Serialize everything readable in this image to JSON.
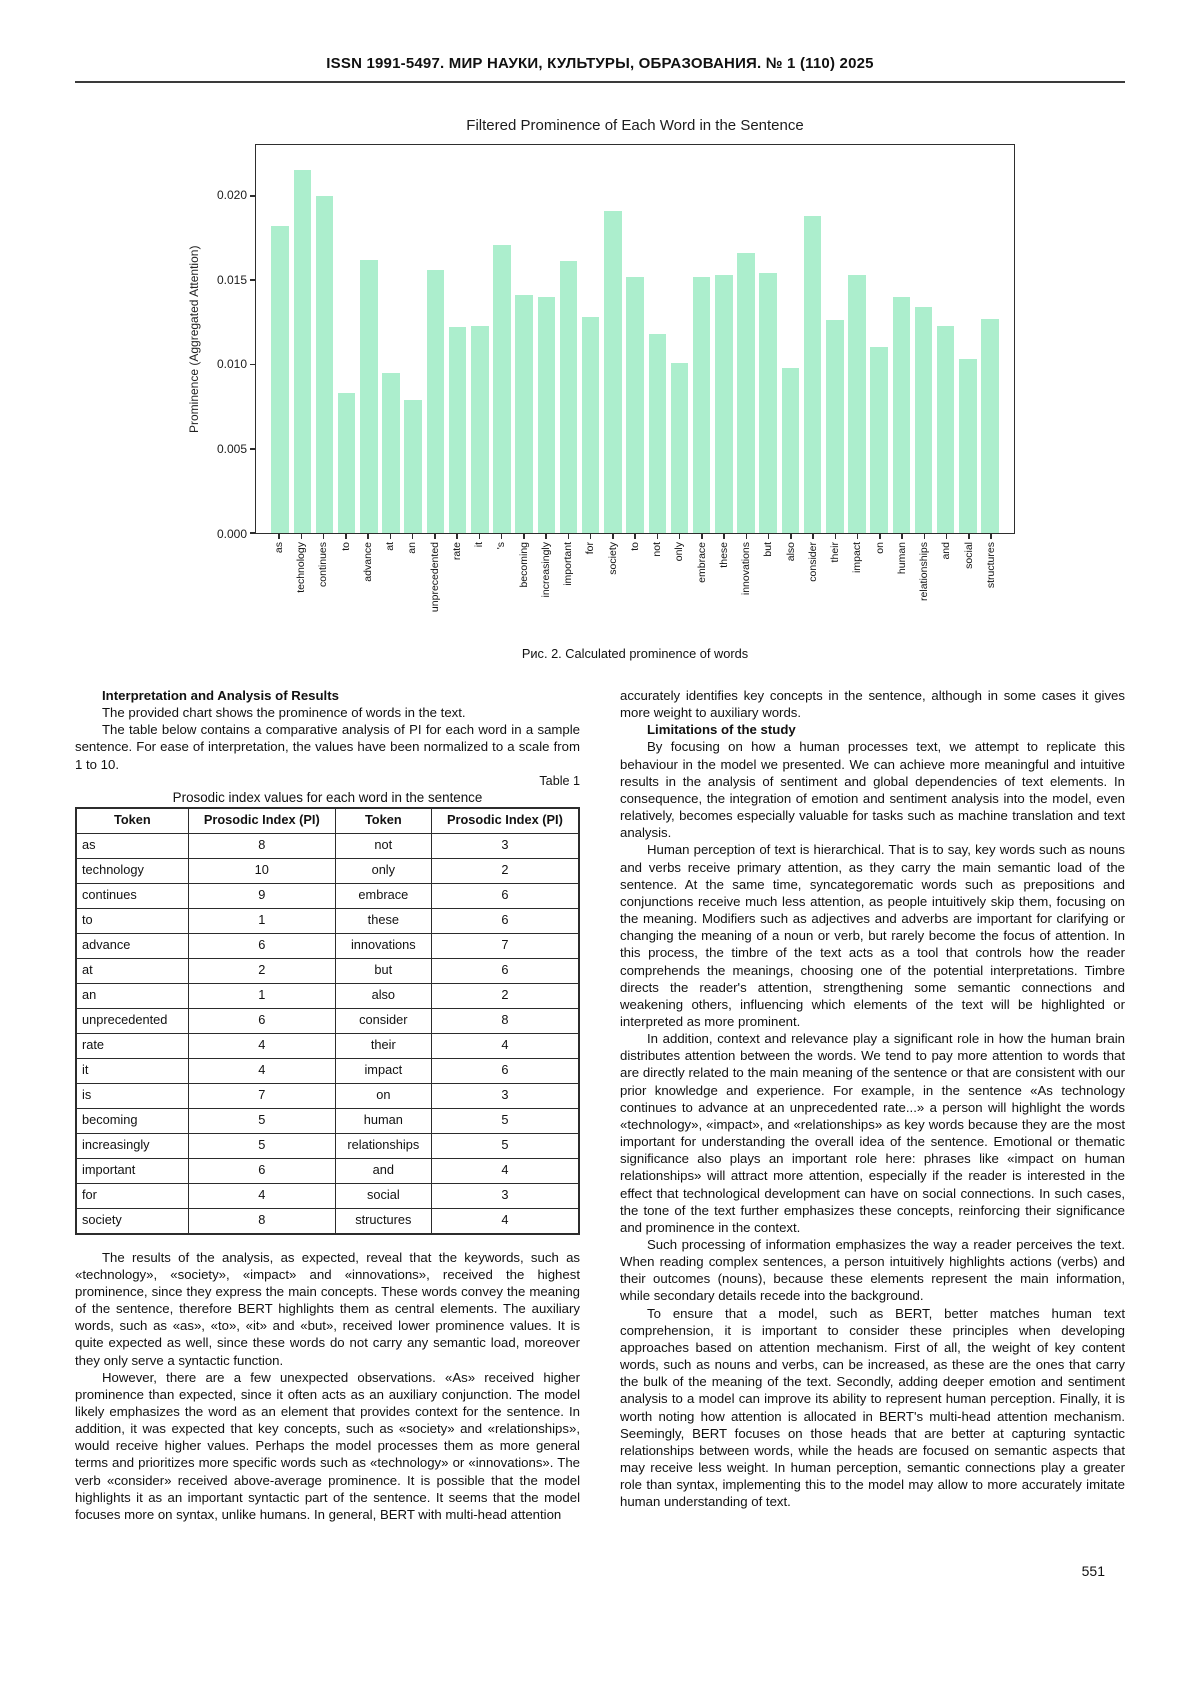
{
  "page": {
    "header": "ISSN 1991-5497. МИР НАУКИ, КУЛЬТУРЫ, ОБРАЗОВАНИЯ. № 1 (110) 2025",
    "page_number": "551"
  },
  "figure": {
    "caption": "Рис. 2. Calculated prominence of words"
  },
  "chart_data": {
    "type": "bar",
    "title": "Filtered Prominence of Each Word in the Sentence",
    "xlabel": "",
    "ylabel": "Prominence (Aggregated Attention)",
    "ylim": [
      0,
      0.023
    ],
    "yticks": [
      0.0,
      0.005,
      0.01,
      0.015,
      0.02
    ],
    "bar_color": "#aceecd",
    "grid": false,
    "legend": "none",
    "categories": [
      "as",
      "technology",
      "continues",
      "to",
      "advance",
      "at",
      "an",
      "unprecedented",
      "rate",
      "it",
      "'s",
      "becoming",
      "increasingly",
      "important",
      "for",
      "society",
      "to",
      "not",
      "only",
      "embrace",
      "these",
      "innovations",
      "but",
      "also",
      "consider",
      "their",
      "impact",
      "on",
      "human",
      "relationships",
      "and",
      "social",
      "structures"
    ],
    "values": [
      0.0182,
      0.0215,
      0.02,
      0.0083,
      0.0162,
      0.0095,
      0.0079,
      0.0156,
      0.0122,
      0.0123,
      0.0171,
      0.0141,
      0.014,
      0.0161,
      0.0128,
      0.0191,
      0.0152,
      0.0118,
      0.0101,
      0.0152,
      0.0153,
      0.0166,
      0.0154,
      0.0098,
      0.0188,
      0.0126,
      0.0153,
      0.011,
      0.014,
      0.0134,
      0.0123,
      0.0103,
      0.0127
    ]
  },
  "left_column": {
    "heading1": "Interpretation and Analysis of Results",
    "para1": "The provided chart shows the prominence of words in the text.",
    "para2": "The table below contains a comparative analysis of PI for each word in a sample sentence. For ease of interpretation, the values have been normalized to a scale from 1 to 10.",
    "table_label": "Table 1",
    "table_title": "Prosodic index values for each word in the sentence",
    "table": {
      "headers": [
        "Token",
        "Prosodic Index (PI)",
        "Token",
        "Prosodic Index (PI)"
      ],
      "rows": [
        [
          "as",
          "8",
          "not",
          "3"
        ],
        [
          "technology",
          "10",
          "only",
          "2"
        ],
        [
          "continues",
          "9",
          "embrace",
          "6"
        ],
        [
          "to",
          "1",
          "these",
          "6"
        ],
        [
          "advance",
          "6",
          "innovations",
          "7"
        ],
        [
          "at",
          "2",
          "but",
          "6"
        ],
        [
          "an",
          "1",
          "also",
          "2"
        ],
        [
          "unprecedented",
          "6",
          "consider",
          "8"
        ],
        [
          "rate",
          "4",
          "their",
          "4"
        ],
        [
          "it",
          "4",
          "impact",
          "6"
        ],
        [
          "is",
          "7",
          "on",
          "3"
        ],
        [
          "becoming",
          "5",
          "human",
          "5"
        ],
        [
          "increasingly",
          "5",
          "relationships",
          "5"
        ],
        [
          "important",
          "6",
          "and",
          "4"
        ],
        [
          "for",
          "4",
          "social",
          "3"
        ],
        [
          "society",
          "8",
          "structures",
          "4"
        ]
      ]
    },
    "para3": "The results of the analysis, as expected, reveal that the keywords, such as «technology», «society», «impact» and «innovations», received the highest prominence, since they express the main concepts. These words convey the meaning of the sentence, therefore BERT highlights them as central elements. The auxiliary words, such as «as», «to», «it» and «but», received lower prominence values. It is quite expected as well, since these words do not carry any semantic load, moreover they only serve a syntactic function.",
    "para4": "However, there are a few unexpected observations. «As» received higher prominence than expected, since it often acts as an auxiliary conjunction. The model likely emphasizes the word as an element that provides context for the sentence. In addition, it was expected that key concepts, such as «society» and «relationships», would receive higher values. Perhaps the model processes them as more general terms and prioritizes more specific words such as «technology» or «innovations». The verb «consider» received above-average prominence. It is possible that the model highlights it as an important syntactic part of the sentence. It seems that the model focuses more on syntax, unlike humans. In general, BERT with multi-head attention"
  },
  "right_column": {
    "para0": "accurately identifies key concepts in the sentence, although in some cases it gives more weight to auxiliary words.",
    "heading1": "Limitations of the study",
    "para1": "By focusing on how a human processes text, we attempt to replicate this behaviour in the model we presented. We can achieve more meaningful and intuitive results in the analysis of sentiment and global dependencies of text elements. In consequence, the integration of emotion and sentiment analysis into the model, even relatively, becomes especially valuable for tasks such as machine translation and text analysis.",
    "para2": "Human perception of text is hierarchical. That is to say, key words such as nouns and verbs receive primary attention, as they carry the main semantic load of the sentence. At the same time, syncategorematic words such as prepositions and conjunctions receive much less attention, as people intuitively skip them, focusing on the meaning. Modifiers such as adjectives and adverbs are important for clarifying or changing the meaning of a noun or verb, but rarely become the focus of attention. In this process, the timbre of the text acts as a tool that controls how the reader comprehends the meanings, choosing one of the potential interpretations. Timbre directs the reader's attention, strengthening some semantic connections and weakening others, influencing which elements of the text will be highlighted or interpreted as more prominent.",
    "para3": "In addition, context and relevance play a significant role in how the human brain distributes attention between the words. We tend to pay more attention to words that are directly related to the main meaning of the sentence or that are consistent with our prior knowledge and experience. For example, in the sentence «As technology continues to advance at an unprecedented rate...» a person will highlight the words «technology», «impact», and «relationships» as key words because they are the most important for understanding the overall idea of the sentence. Emotional or thematic significance also plays an important role here: phrases like «impact on human relationships» will attract more attention, especially if the reader is interested in the effect that technological development can have on social connections. In such cases, the tone of the text further emphasizes these concepts, reinforcing their significance and prominence in the context.",
    "para4": "Such processing of information emphasizes the way a reader perceives the text. When reading complex sentences, a person intuitively highlights actions (verbs) and their outcomes (nouns), because these elements represent the main information, while secondary details recede into the background.",
    "para5": "To ensure that a model, such as BERT, better matches human text comprehension, it is important to consider these principles when developing approaches based on attention mechanism. First of all, the weight of key content words, such as nouns and verbs, can be increased, as these are the ones that carry the bulk of the meaning of the text. Secondly, adding deeper emotion and sentiment analysis to a model can improve its ability to represent human perception. Finally, it is worth noting how attention is allocated in BERT's multi-head attention mechanism. Seemingly, BERT focuses on those heads that are better at capturing syntactic relationships between words, while the heads are focused on semantic aspects that may receive less weight. In human perception, semantic connections play a greater role than syntax, implementing this to the model may allow to more accurately imitate human understanding of text."
  }
}
